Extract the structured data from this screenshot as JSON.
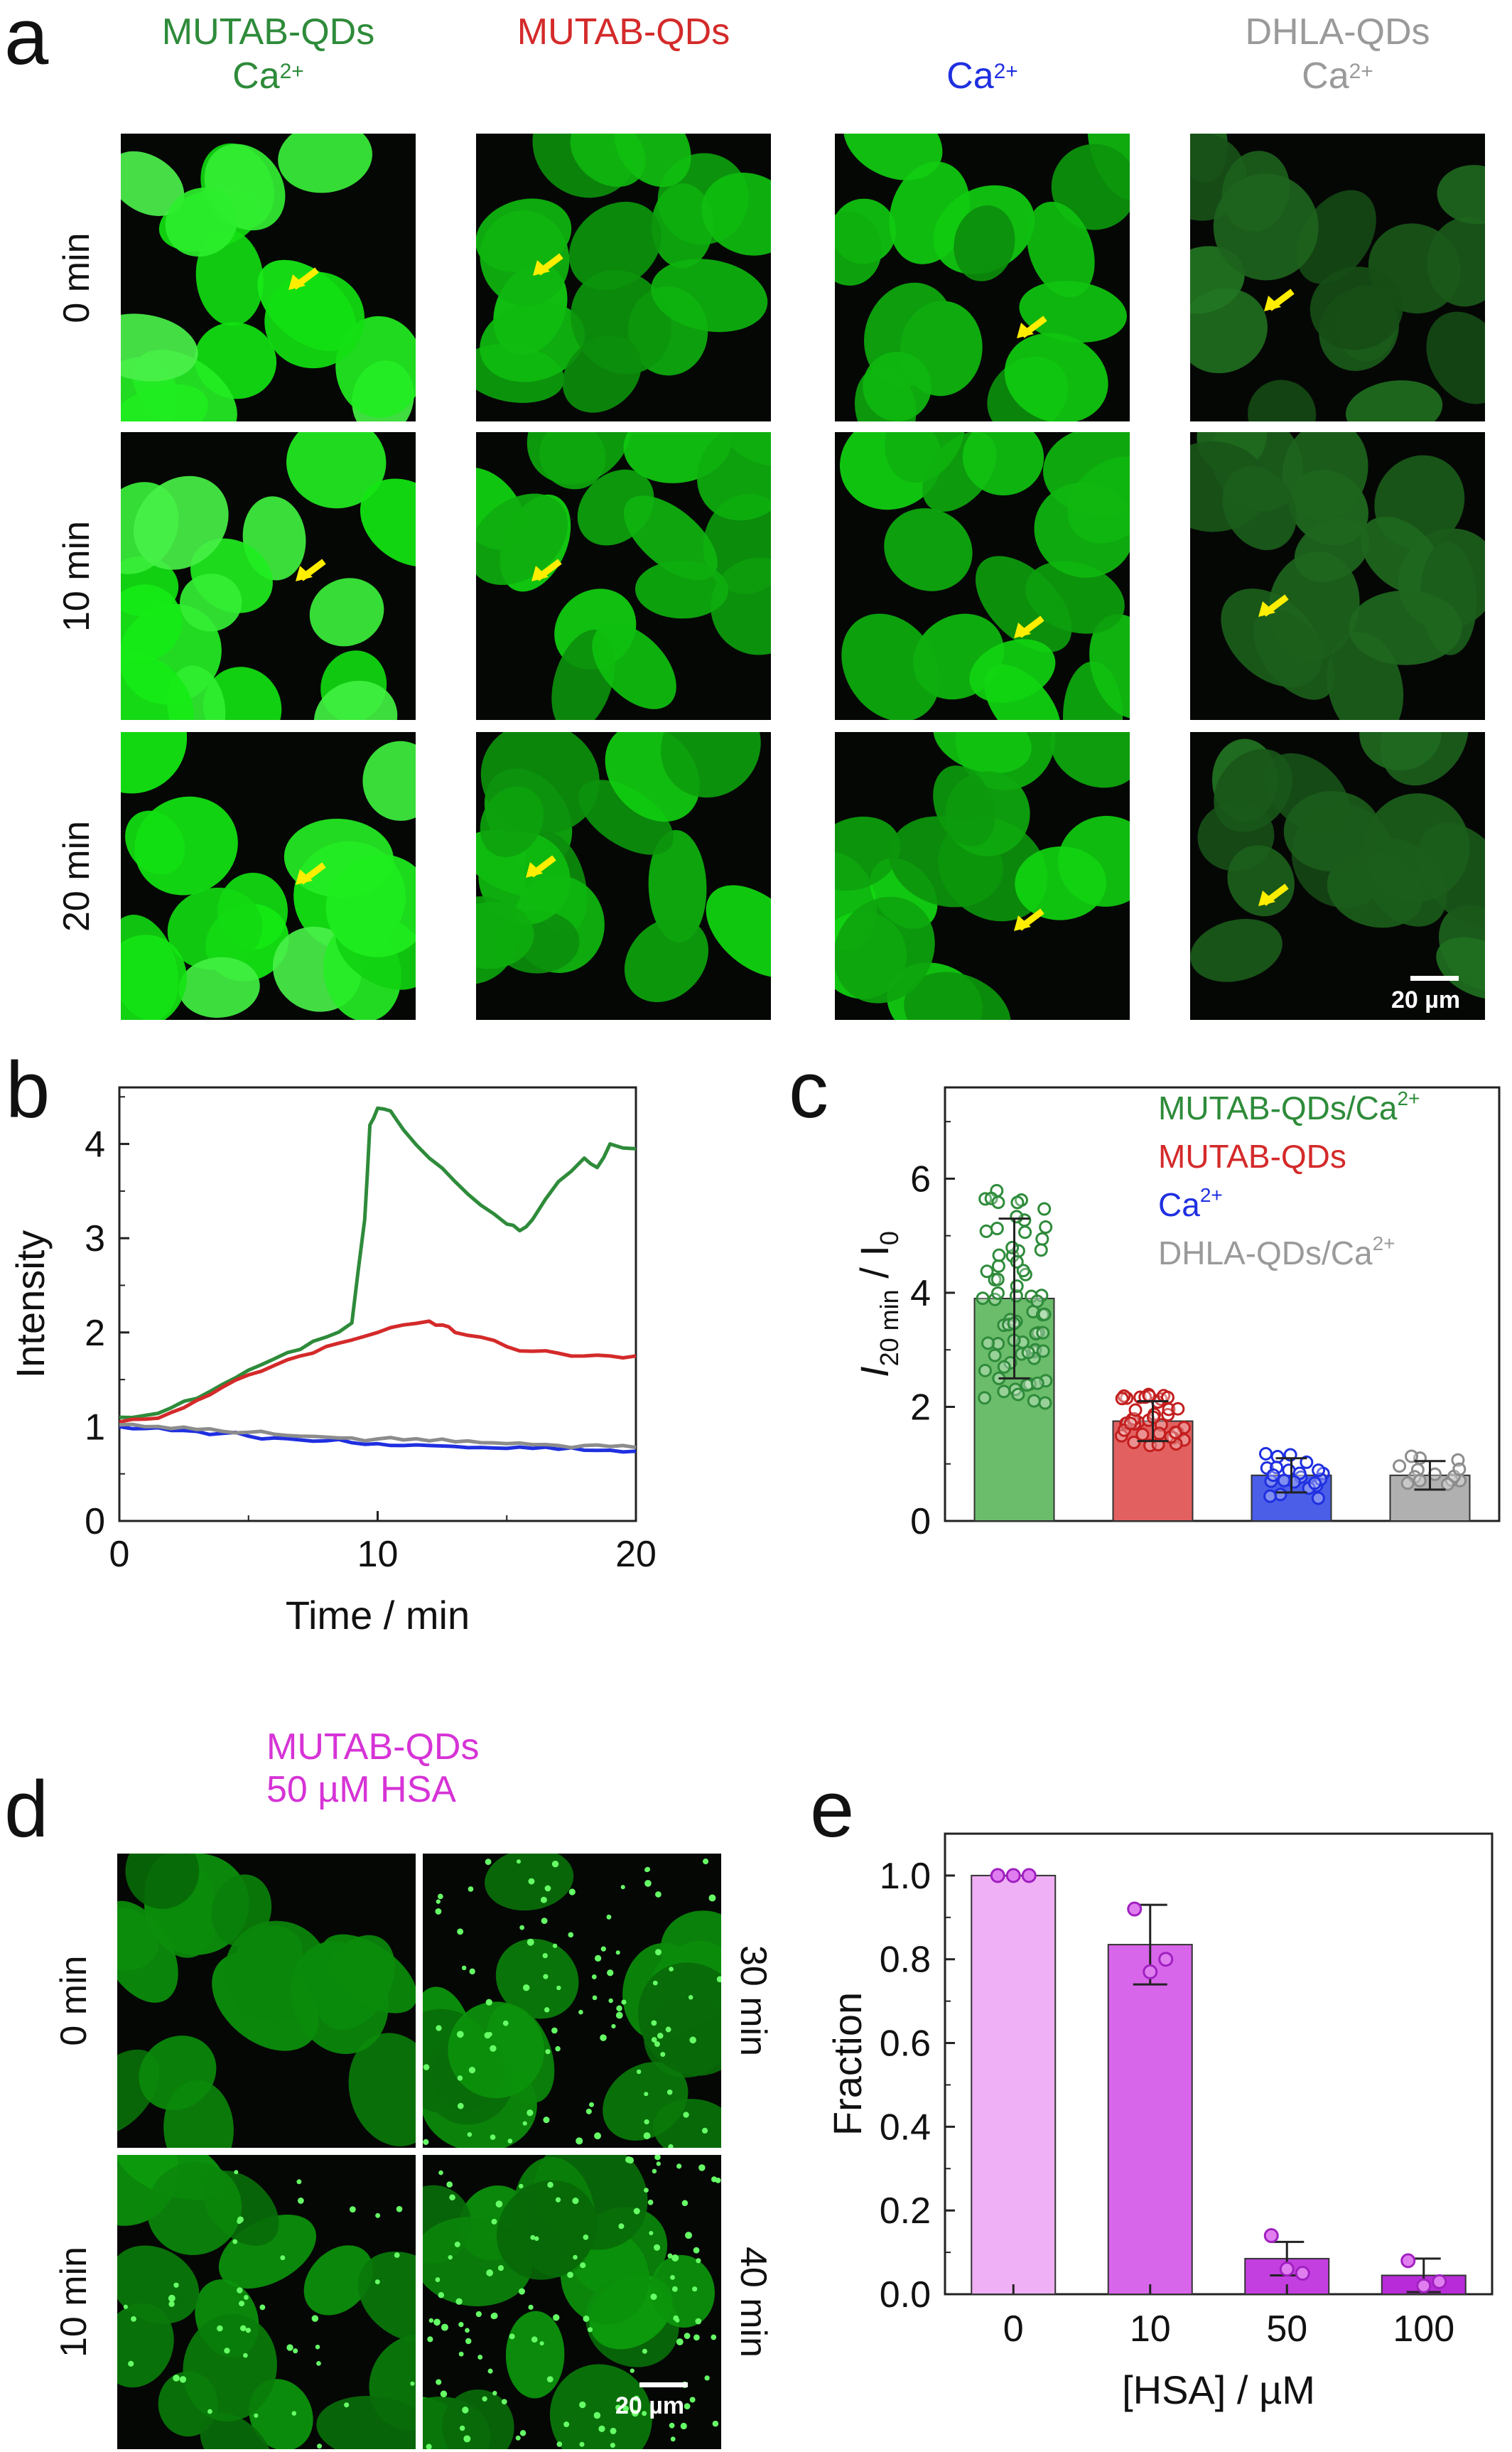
{
  "panel_letters": {
    "a": "a",
    "b": "b",
    "c": "c",
    "d": "d",
    "e": "e"
  },
  "panel_a": {
    "columns": [
      {
        "line1": "MUTAB-QDs",
        "line2": "Ca",
        "sup": "2+",
        "color": "#2e8b3a",
        "brightness": "high"
      },
      {
        "line1": "MUTAB-QDs",
        "line2": "",
        "sup": "",
        "color": "#d42a2a",
        "brightness": "medium"
      },
      {
        "line1": "",
        "line2": "Ca",
        "sup": "2+",
        "color": "#1f2fe0",
        "brightness": "medium"
      },
      {
        "line1": "DHLA-QDs",
        "line2": "Ca",
        "sup": "2+",
        "color": "#9a9a9a",
        "brightness": "low"
      }
    ],
    "rows": [
      "0 min",
      "10 min",
      "20 min"
    ],
    "scalebar": "20 µm",
    "arrow_color": "#ffee00"
  },
  "panel_b": {
    "chart_data": {
      "type": "line",
      "xlabel": "Time / min",
      "ylabel": "Intensity",
      "xlim": [
        0,
        20
      ],
      "ylim": [
        0,
        4.6
      ],
      "xticks": [
        "0",
        "10",
        "20"
      ],
      "yticks": [
        "0",
        "1",
        "2",
        "3",
        "4"
      ],
      "series": [
        {
          "color": "#2e8b3a",
          "x": [
            0,
            1,
            2,
            3,
            4,
            5,
            6,
            7,
            8,
            9,
            9.5,
            9.7,
            10,
            10.5,
            11,
            12,
            13,
            14,
            15,
            15.5,
            16,
            17,
            18,
            18.5,
            19,
            20
          ],
          "y": [
            1.1,
            1.12,
            1.2,
            1.3,
            1.45,
            1.6,
            1.72,
            1.82,
            1.95,
            2.1,
            3.2,
            4.2,
            4.38,
            4.35,
            4.15,
            3.85,
            3.6,
            3.35,
            3.15,
            3.08,
            3.2,
            3.6,
            3.85,
            3.75,
            4.0,
            3.95
          ]
        },
        {
          "color": "#d42a2a",
          "x": [
            0,
            1,
            2,
            3,
            4,
            5,
            6,
            7,
            8,
            9,
            10,
            11,
            12,
            12.5,
            13,
            14,
            15,
            16,
            17,
            18,
            19,
            20
          ],
          "y": [
            1.05,
            1.08,
            1.15,
            1.28,
            1.42,
            1.55,
            1.65,
            1.75,
            1.85,
            1.92,
            2.0,
            2.08,
            2.12,
            2.08,
            2.0,
            1.95,
            1.85,
            1.8,
            1.78,
            1.75,
            1.75,
            1.75
          ]
        },
        {
          "color": "#1f2fe0",
          "x": [
            0,
            1,
            2,
            3,
            4,
            5,
            6,
            7,
            8,
            9,
            10,
            11,
            12,
            13,
            14,
            15,
            16,
            17,
            18,
            19,
            20
          ],
          "y": [
            1.0,
            0.98,
            0.96,
            0.95,
            0.93,
            0.9,
            0.88,
            0.86,
            0.85,
            0.83,
            0.82,
            0.8,
            0.8,
            0.79,
            0.78,
            0.77,
            0.77,
            0.76,
            0.75,
            0.75,
            0.74
          ]
        },
        {
          "color": "#8c8c8c",
          "x": [
            0,
            1,
            2,
            3,
            4,
            5,
            6,
            7,
            8,
            9,
            10,
            11,
            12,
            13,
            14,
            15,
            16,
            17,
            18,
            19,
            20
          ],
          "y": [
            1.02,
            1.0,
            0.98,
            0.97,
            0.95,
            0.94,
            0.92,
            0.9,
            0.89,
            0.88,
            0.87,
            0.86,
            0.85,
            0.84,
            0.83,
            0.82,
            0.81,
            0.8,
            0.8,
            0.79,
            0.78
          ]
        }
      ]
    }
  },
  "panel_c": {
    "chart_data": {
      "type": "bar",
      "ylabel_main": "I",
      "ylabel_sub1": "20 min",
      "ylabel_mid": " / I",
      "ylabel_sub2": "0",
      "ylim": [
        0,
        7.6
      ],
      "yticks": [
        "0",
        "2",
        "4",
        "6"
      ],
      "categories": [
        "MUTAB-QDs/Ca2+",
        "MUTAB-QDs",
        "Ca2+",
        "DHLA-QDs/Ca2+"
      ],
      "values": [
        3.9,
        1.75,
        0.8,
        0.8
      ],
      "errors": [
        1.4,
        0.35,
        0.3,
        0.25
      ],
      "bar_colors": [
        "#6bbd6b",
        "#e36060",
        "#4a5ee8",
        "#b0b0b0"
      ],
      "point_colors": [
        "#2e8b3a",
        "#c41e1e",
        "#1f2fe0",
        "#8c8c8c"
      ],
      "legend": [
        {
          "text": "MUTAB-QDs/Ca",
          "sup": "2+",
          "color": "#2e8b3a"
        },
        {
          "text": "MUTAB-QDs",
          "sup": "",
          "color": "#d42a2a"
        },
        {
          "text": "Ca",
          "sup": "2+",
          "color": "#1f2fe0"
        },
        {
          "text": "DHLA-QDs/Ca",
          "sup": "2+",
          "color": "#9a9a9a"
        }
      ]
    }
  },
  "panel_d": {
    "title_line1": "MUTAB-QDs",
    "title_line2": "50 µM HSA",
    "title_color": "#d633d6",
    "left_labels": [
      "0 min",
      "10 min"
    ],
    "right_labels": [
      "30 min",
      "40 min"
    ],
    "scalebar": "20 µm"
  },
  "panel_e": {
    "chart_data": {
      "type": "bar",
      "xlabel": "[HSA] / µM",
      "ylabel": "Fraction",
      "ylim": [
        0,
        1.1
      ],
      "yticks": [
        "0.0",
        "0.2",
        "0.4",
        "0.6",
        "0.8",
        "1.0"
      ],
      "categories": [
        "0",
        "10",
        "50",
        "100"
      ],
      "values": [
        1.0,
        0.835,
        0.085,
        0.045
      ],
      "errors": [
        0.0,
        0.095,
        0.04,
        0.04
      ],
      "points": [
        [
          1.0,
          1.0,
          1.0
        ],
        [
          0.92,
          0.77,
          0.8
        ],
        [
          0.14,
          0.06,
          0.05
        ],
        [
          0.08,
          0.02,
          0.03
        ]
      ],
      "bar_colors": [
        "#f0b0f5",
        "#d866ea",
        "#c43fe0",
        "#b82bd8"
      ]
    }
  }
}
